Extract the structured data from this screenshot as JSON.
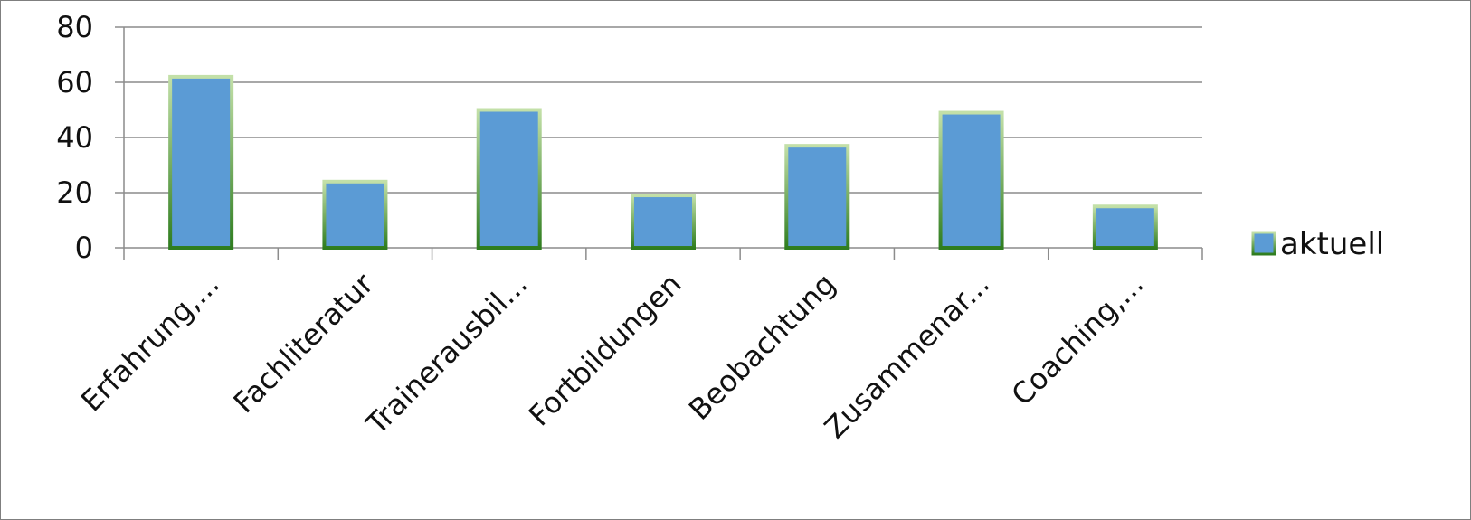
{
  "chart_data": {
    "type": "bar",
    "categories": [
      "Erfahrung,...",
      "Fachliteratur",
      "Trainerausbil...",
      "Fortbildungen",
      "Beobachtung",
      "Zusammenar...",
      "Coaching,..."
    ],
    "series": [
      {
        "name": "aktuell",
        "values": [
          62,
          24,
          50,
          19,
          37,
          49,
          15
        ]
      }
    ],
    "yticks": [
      "0",
      "20",
      "40",
      "60",
      "80"
    ],
    "ylim": [
      0,
      80
    ],
    "grid": true,
    "legend_position": "right",
    "colors": {
      "bar_fill": "#5b9bd5",
      "bar_stroke_top": "#c3e0a8",
      "bar_stroke_bottom": "#2f7d1f",
      "grid": "#8c8c8c",
      "axis": "#8c8c8c",
      "frame": "#7f7f7f"
    }
  }
}
